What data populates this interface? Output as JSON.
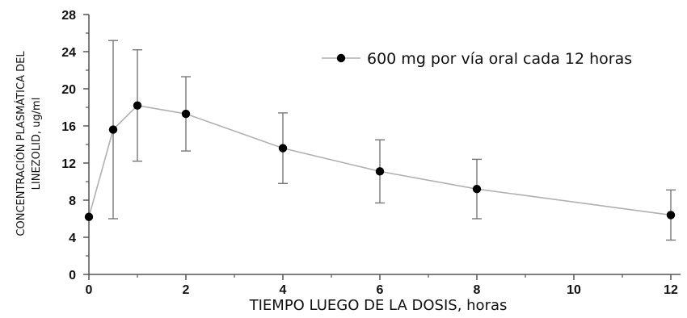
{
  "chart_data": {
    "type": "line",
    "xlabel": "TIEMPO LUEGO DE LA DOSIS, horas",
    "ylabel_lines": [
      "CONCENTRACIÓN PLASMÁTICA DEL",
      "LINEZOLID, ug/ml"
    ],
    "xlim": [
      0,
      12
    ],
    "ylim": [
      0,
      28
    ],
    "x_ticks": [
      0,
      2,
      4,
      6,
      8,
      10,
      12
    ],
    "x_tick_labels": [
      "0",
      "2",
      "4",
      "6",
      "8",
      "10",
      "12"
    ],
    "y_ticks": [
      0,
      4,
      8,
      12,
      16,
      20,
      24,
      28
    ],
    "y_tick_labels": [
      "0",
      "4",
      "8",
      "12",
      "16",
      "20",
      "24",
      "28"
    ],
    "grid": false,
    "legend_position": "top-right",
    "series": [
      {
        "name": "600 mg por vía oral cada 12 horas",
        "color": "#b0b0b0",
        "marker_color": "#000000",
        "x": [
          0,
          0.5,
          1,
          2,
          4,
          6,
          8,
          12
        ],
        "y": [
          6.2,
          15.6,
          18.2,
          17.3,
          13.6,
          11.1,
          9.2,
          6.4
        ],
        "error": [
          0,
          9.6,
          6.0,
          4.0,
          3.8,
          3.4,
          3.2,
          2.7
        ]
      }
    ]
  }
}
